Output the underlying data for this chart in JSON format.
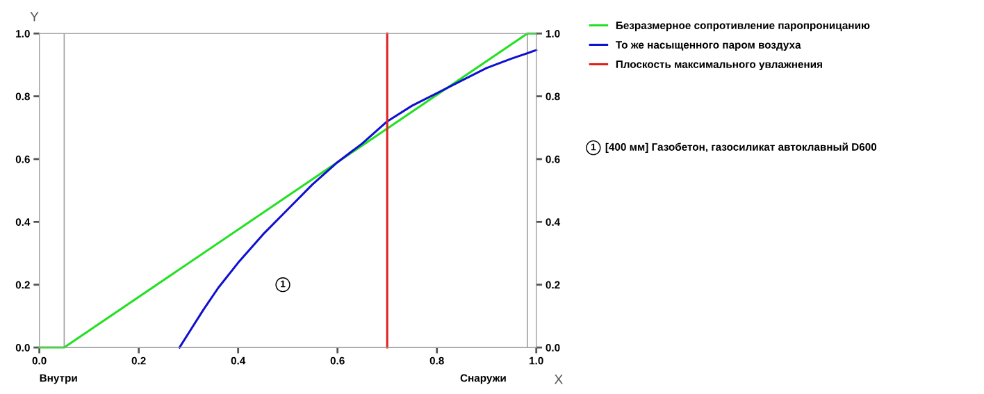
{
  "chart_data": {
    "type": "line",
    "xlabel": "X",
    "ylabel": "Y",
    "xlim": [
      0,
      1.0
    ],
    "xticks": [
      {
        "value": 0,
        "label": "0.0"
      },
      {
        "value": 0.2,
        "label": "0.2"
      },
      {
        "value": 0.4,
        "label": "0.4"
      },
      {
        "value": 0.6,
        "label": "0.6"
      },
      {
        "value": 0.8,
        "label": "0.8"
      },
      {
        "value": 1.0,
        "label": "1.0"
      }
    ],
    "ylim": [
      0,
      1.0
    ],
    "yticks": [
      {
        "value": 0,
        "label": "0.0"
      },
      {
        "value": 0.2,
        "label": "0.2"
      },
      {
        "value": 0.4,
        "label": "0.4"
      },
      {
        "value": 0.6,
        "label": "0.6"
      },
      {
        "value": 0.8,
        "label": "0.8"
      },
      {
        "value": 1.0,
        "label": "1.0"
      }
    ],
    "y2lim": [
      0,
      1.0
    ],
    "y2ticks": [
      {
        "value": 0,
        "label": "0.0"
      },
      {
        "value": 0.2,
        "label": "0.2"
      },
      {
        "value": 0.4,
        "label": "0.4"
      },
      {
        "value": 0.6,
        "label": "0.6"
      },
      {
        "value": 0.8,
        "label": "0.8"
      },
      {
        "value": 1.0,
        "label": "1.0"
      }
    ],
    "series": [
      {
        "name": "Безразмерное сопротивление паропроницанию",
        "color": "#22e022",
        "x": [
          0,
          0.05,
          0.982,
          1.0
        ],
        "values": [
          0,
          0,
          1.0,
          1.0
        ]
      },
      {
        "name": "То же насыщенного паром воздуха",
        "color": "#1010d0",
        "x": [
          0.282,
          0.3,
          0.33,
          0.36,
          0.4,
          0.45,
          0.5,
          0.55,
          0.6,
          0.65,
          0.7,
          0.75,
          0.8,
          0.85,
          0.9,
          0.95,
          1.0
        ],
        "values": [
          0,
          0.045,
          0.12,
          0.19,
          0.27,
          0.36,
          0.44,
          0.52,
          0.59,
          0.65,
          0.72,
          0.77,
          0.81,
          0.85,
          0.89,
          0.92,
          0.947
        ]
      },
      {
        "name": "Плоскость максимального увлажнения",
        "color": "#e02020",
        "x": [
          0.7,
          0.7
        ],
        "values": [
          0,
          1.0
        ]
      }
    ],
    "ref_lines": [
      {
        "axis": "x",
        "value": 0.05,
        "color": "#a0a0a0"
      },
      {
        "axis": "x",
        "value": 0.982,
        "color": "#a0a0a0"
      }
    ],
    "annotations": [
      {
        "text": "1",
        "x": 0.49,
        "y": 0.2
      },
      "1 [400 мм] Газобетон, газосиликат автоклавный D600",
      "Внутри",
      "Снаружи"
    ],
    "legend": "right",
    "grid": false,
    "marker": "none",
    "line_style": "solid"
  }
}
